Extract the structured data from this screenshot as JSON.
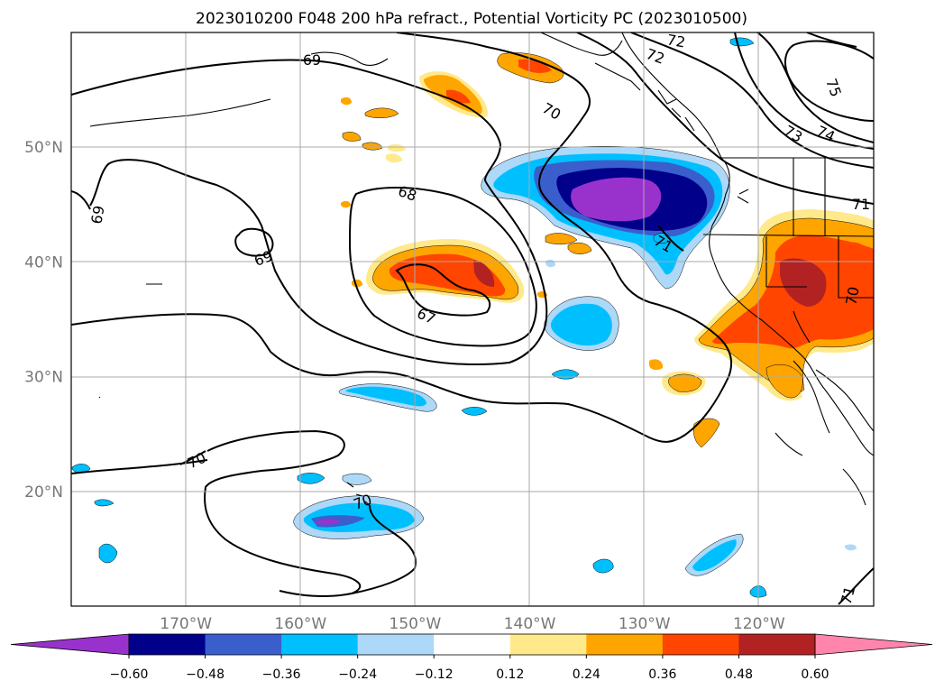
{
  "chart_data": {
    "type": "heatmap",
    "title": "2023010200 F048 200 hPa refract., Potential Vorticity PC (2023010500)",
    "map": {
      "lon_range": [
        -180,
        -110
      ],
      "lat_range": [
        10,
        60
      ],
      "lon_ticks": [
        -170,
        -160,
        -150,
        -140,
        -130,
        -120
      ],
      "lon_tick_labels": [
        "170°W",
        "160°W",
        "150°W",
        "140°W",
        "130°W",
        "120°W"
      ],
      "lat_ticks": [
        20,
        30,
        40,
        50
      ],
      "lat_tick_labels": [
        "20°N",
        "30°N",
        "40°N",
        "50°N"
      ],
      "grid": true
    },
    "colorbar": {
      "levels": [
        -0.6,
        -0.48,
        -0.36,
        -0.24,
        -0.12,
        0.12,
        0.24,
        0.36,
        0.48,
        0.6
      ],
      "tick_labels": [
        "−0.60",
        "−0.48",
        "−0.36",
        "−0.24",
        "−0.12",
        "0.12",
        "0.24",
        "0.36",
        "0.48",
        "0.60"
      ],
      "colors": [
        "#9932cc",
        "#00008b",
        "#3a5fcd",
        "#00bfff",
        "#add8f8",
        "#ffffff",
        "#ffe98b",
        "#ffa500",
        "#ff4500",
        "#b22222",
        "#ff85ad"
      ],
      "extend": "both"
    },
    "contours": {
      "labels": [
        "67",
        "68",
        "69",
        "69",
        "69",
        "70",
        "70",
        "70",
        "71",
        "71",
        "71",
        "72",
        "72",
        "73",
        "74",
        "75",
        "70",
        "70"
      ]
    },
    "shaded_features": [
      {
        "name": "negative PC core",
        "lon": -131,
        "lat": 46,
        "peak": -0.65
      },
      {
        "name": "positive PC central Pacific",
        "lon": -147,
        "lat": 39,
        "peak": 0.5
      },
      {
        "name": "positive PC California",
        "lon": -119,
        "lat": 38,
        "peak": 0.55
      },
      {
        "name": "positive PC Gulf of Alaska",
        "lon": -143,
        "lat": 54,
        "peak": 0.4
      },
      {
        "name": "negative PC Hawaii",
        "lon": -155,
        "lat": 18,
        "peak": -0.35
      },
      {
        "name": "negative PC offshore",
        "lon": -137,
        "lat": 34,
        "peak": -0.3
      }
    ]
  }
}
